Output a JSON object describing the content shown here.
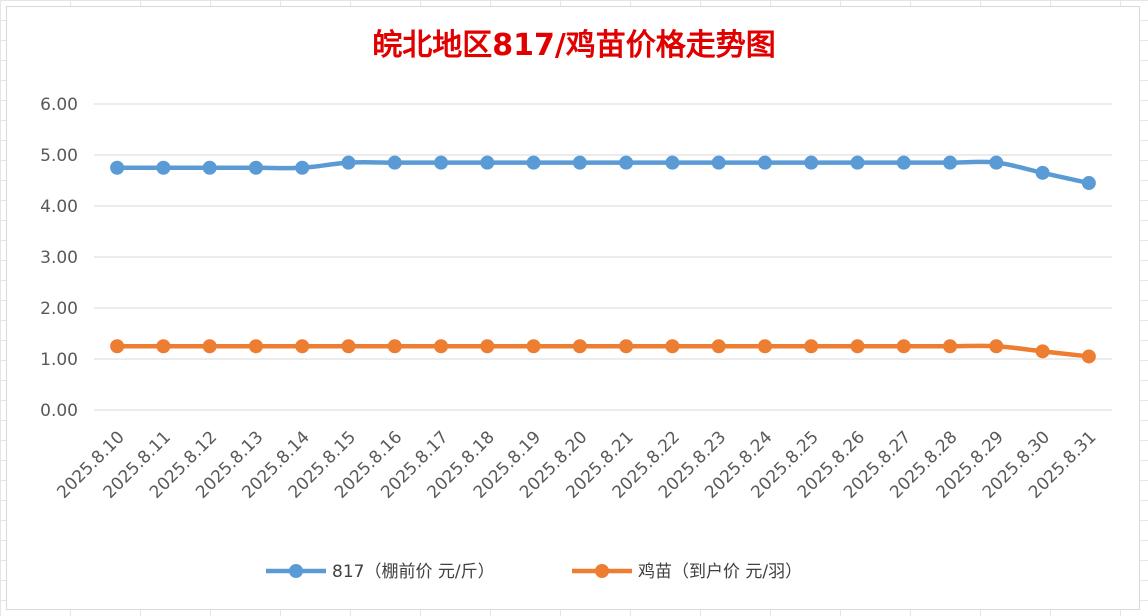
{
  "chart_data": {
    "type": "line",
    "title": "皖北地区817/鸡苗价格走势图",
    "categories": [
      "2025.8.10",
      "2025.8.11",
      "2025.8.12",
      "2025.8.13",
      "2025.8.14",
      "2025.8.15",
      "2025.8.16",
      "2025.8.17",
      "2025.8.18",
      "2025.8.19",
      "2025.8.20",
      "2025.8.21",
      "2025.8.22",
      "2025.8.23",
      "2025.8.24",
      "2025.8.25",
      "2025.8.26",
      "2025.8.27",
      "2025.8.28",
      "2025.8.29",
      "2025.8.30",
      "2025.8.31"
    ],
    "series": [
      {
        "name": "817（棚前价 元/斤）",
        "color": "#5b9bd5",
        "values": [
          4.75,
          4.75,
          4.75,
          4.75,
          4.75,
          4.85,
          4.85,
          4.85,
          4.85,
          4.85,
          4.85,
          4.85,
          4.85,
          4.85,
          4.85,
          4.85,
          4.85,
          4.85,
          4.85,
          4.85,
          4.65,
          4.45
        ]
      },
      {
        "name": "鸡苗（到户价 元/羽）",
        "color": "#ed7d31",
        "values": [
          1.25,
          1.25,
          1.25,
          1.25,
          1.25,
          1.25,
          1.25,
          1.25,
          1.25,
          1.25,
          1.25,
          1.25,
          1.25,
          1.25,
          1.25,
          1.25,
          1.25,
          1.25,
          1.25,
          1.25,
          1.15,
          1.05
        ]
      }
    ],
    "yticks": [
      "0.00",
      "1.00",
      "2.00",
      "3.00",
      "4.00",
      "5.00",
      "6.00"
    ],
    "ylim": [
      0,
      6
    ],
    "grid": "horizontal",
    "legend": "bottom",
    "xlabel": "",
    "ylabel": ""
  }
}
